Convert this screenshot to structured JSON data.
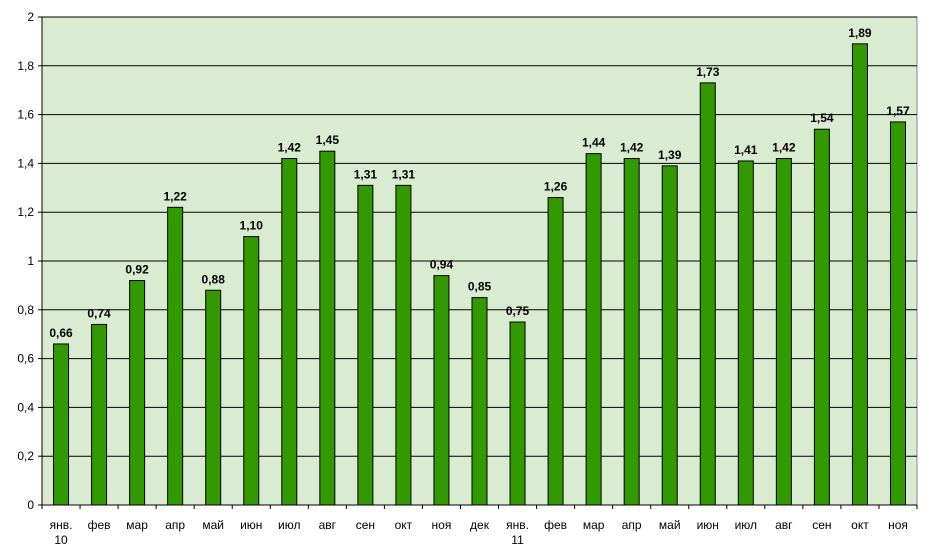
{
  "chart_data": {
    "type": "bar",
    "categories": [
      [
        "янв.",
        "10"
      ],
      [
        "фев"
      ],
      [
        "мар"
      ],
      [
        "апр"
      ],
      [
        "май"
      ],
      [
        "июн"
      ],
      [
        "июл"
      ],
      [
        "авг"
      ],
      [
        "сен"
      ],
      [
        "окт"
      ],
      [
        "ноя"
      ],
      [
        "дек"
      ],
      [
        "янв.",
        "11"
      ],
      [
        "фев"
      ],
      [
        "мар"
      ],
      [
        "апр"
      ],
      [
        "май"
      ],
      [
        "июн"
      ],
      [
        "июл"
      ],
      [
        "авг"
      ],
      [
        "сен"
      ],
      [
        "окт"
      ],
      [
        "ноя"
      ]
    ],
    "values": [
      0.66,
      0.74,
      0.92,
      1.22,
      0.88,
      1.1,
      1.42,
      1.45,
      1.31,
      1.31,
      0.94,
      0.85,
      0.75,
      1.26,
      1.44,
      1.42,
      1.39,
      1.73,
      1.41,
      1.42,
      1.54,
      1.89,
      1.57
    ],
    "value_labels": [
      "0,66",
      "0,74",
      "0,92",
      "1,22",
      "0,88",
      "1,10",
      "1,42",
      "1,45",
      "1,31",
      "1,31",
      "0,94",
      "0,85",
      "0,75",
      "1,26",
      "1,44",
      "1,42",
      "1,39",
      "1,73",
      "1,41",
      "1,42",
      "1,54",
      "1,89",
      "1,57"
    ],
    "yticks": [
      0,
      0.2,
      0.4,
      0.6,
      0.8,
      1,
      1.2,
      1.4,
      1.6,
      1.8,
      2
    ],
    "ytick_labels": [
      "0",
      "0,2",
      "0,4",
      "0,6",
      "0,8",
      "1",
      "1,2",
      "1,4",
      "1,6",
      "1,8",
      "2"
    ],
    "ylim": [
      0,
      2
    ],
    "grid": true,
    "legend": "none",
    "title": "",
    "xlabel": "",
    "ylabel": "",
    "colors": {
      "plot_background": "#d9ecd2",
      "bar_fill": "#339900",
      "bar_stroke": "#000000",
      "grid": "#000000"
    }
  }
}
